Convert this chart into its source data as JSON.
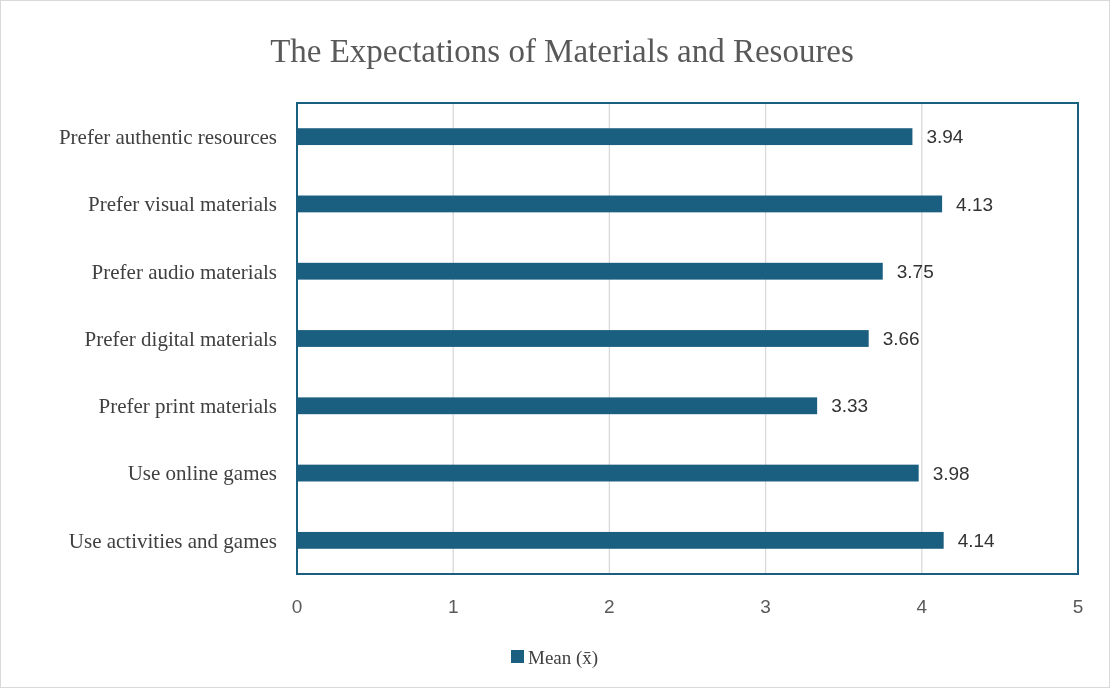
{
  "chart_data": {
    "type": "bar",
    "orientation": "horizontal",
    "title": "The Expectations of Materials and Resoures",
    "categories": [
      "Prefer authentic resources",
      "Prefer visual materials",
      "Prefer audio materials",
      "Prefer digital materials",
      "Prefer print materials",
      "Use online games",
      "Use activities and games"
    ],
    "series": [
      {
        "name": "Mean (x̄)",
        "color": "#1b5f80",
        "values": [
          3.94,
          4.13,
          3.75,
          3.66,
          3.33,
          3.98,
          4.14
        ]
      }
    ],
    "xlim": [
      0,
      5
    ],
    "xticks": [
      0,
      1,
      2,
      3,
      4,
      5
    ],
    "grid": "x",
    "legend": "bottom",
    "data_labels": true
  }
}
